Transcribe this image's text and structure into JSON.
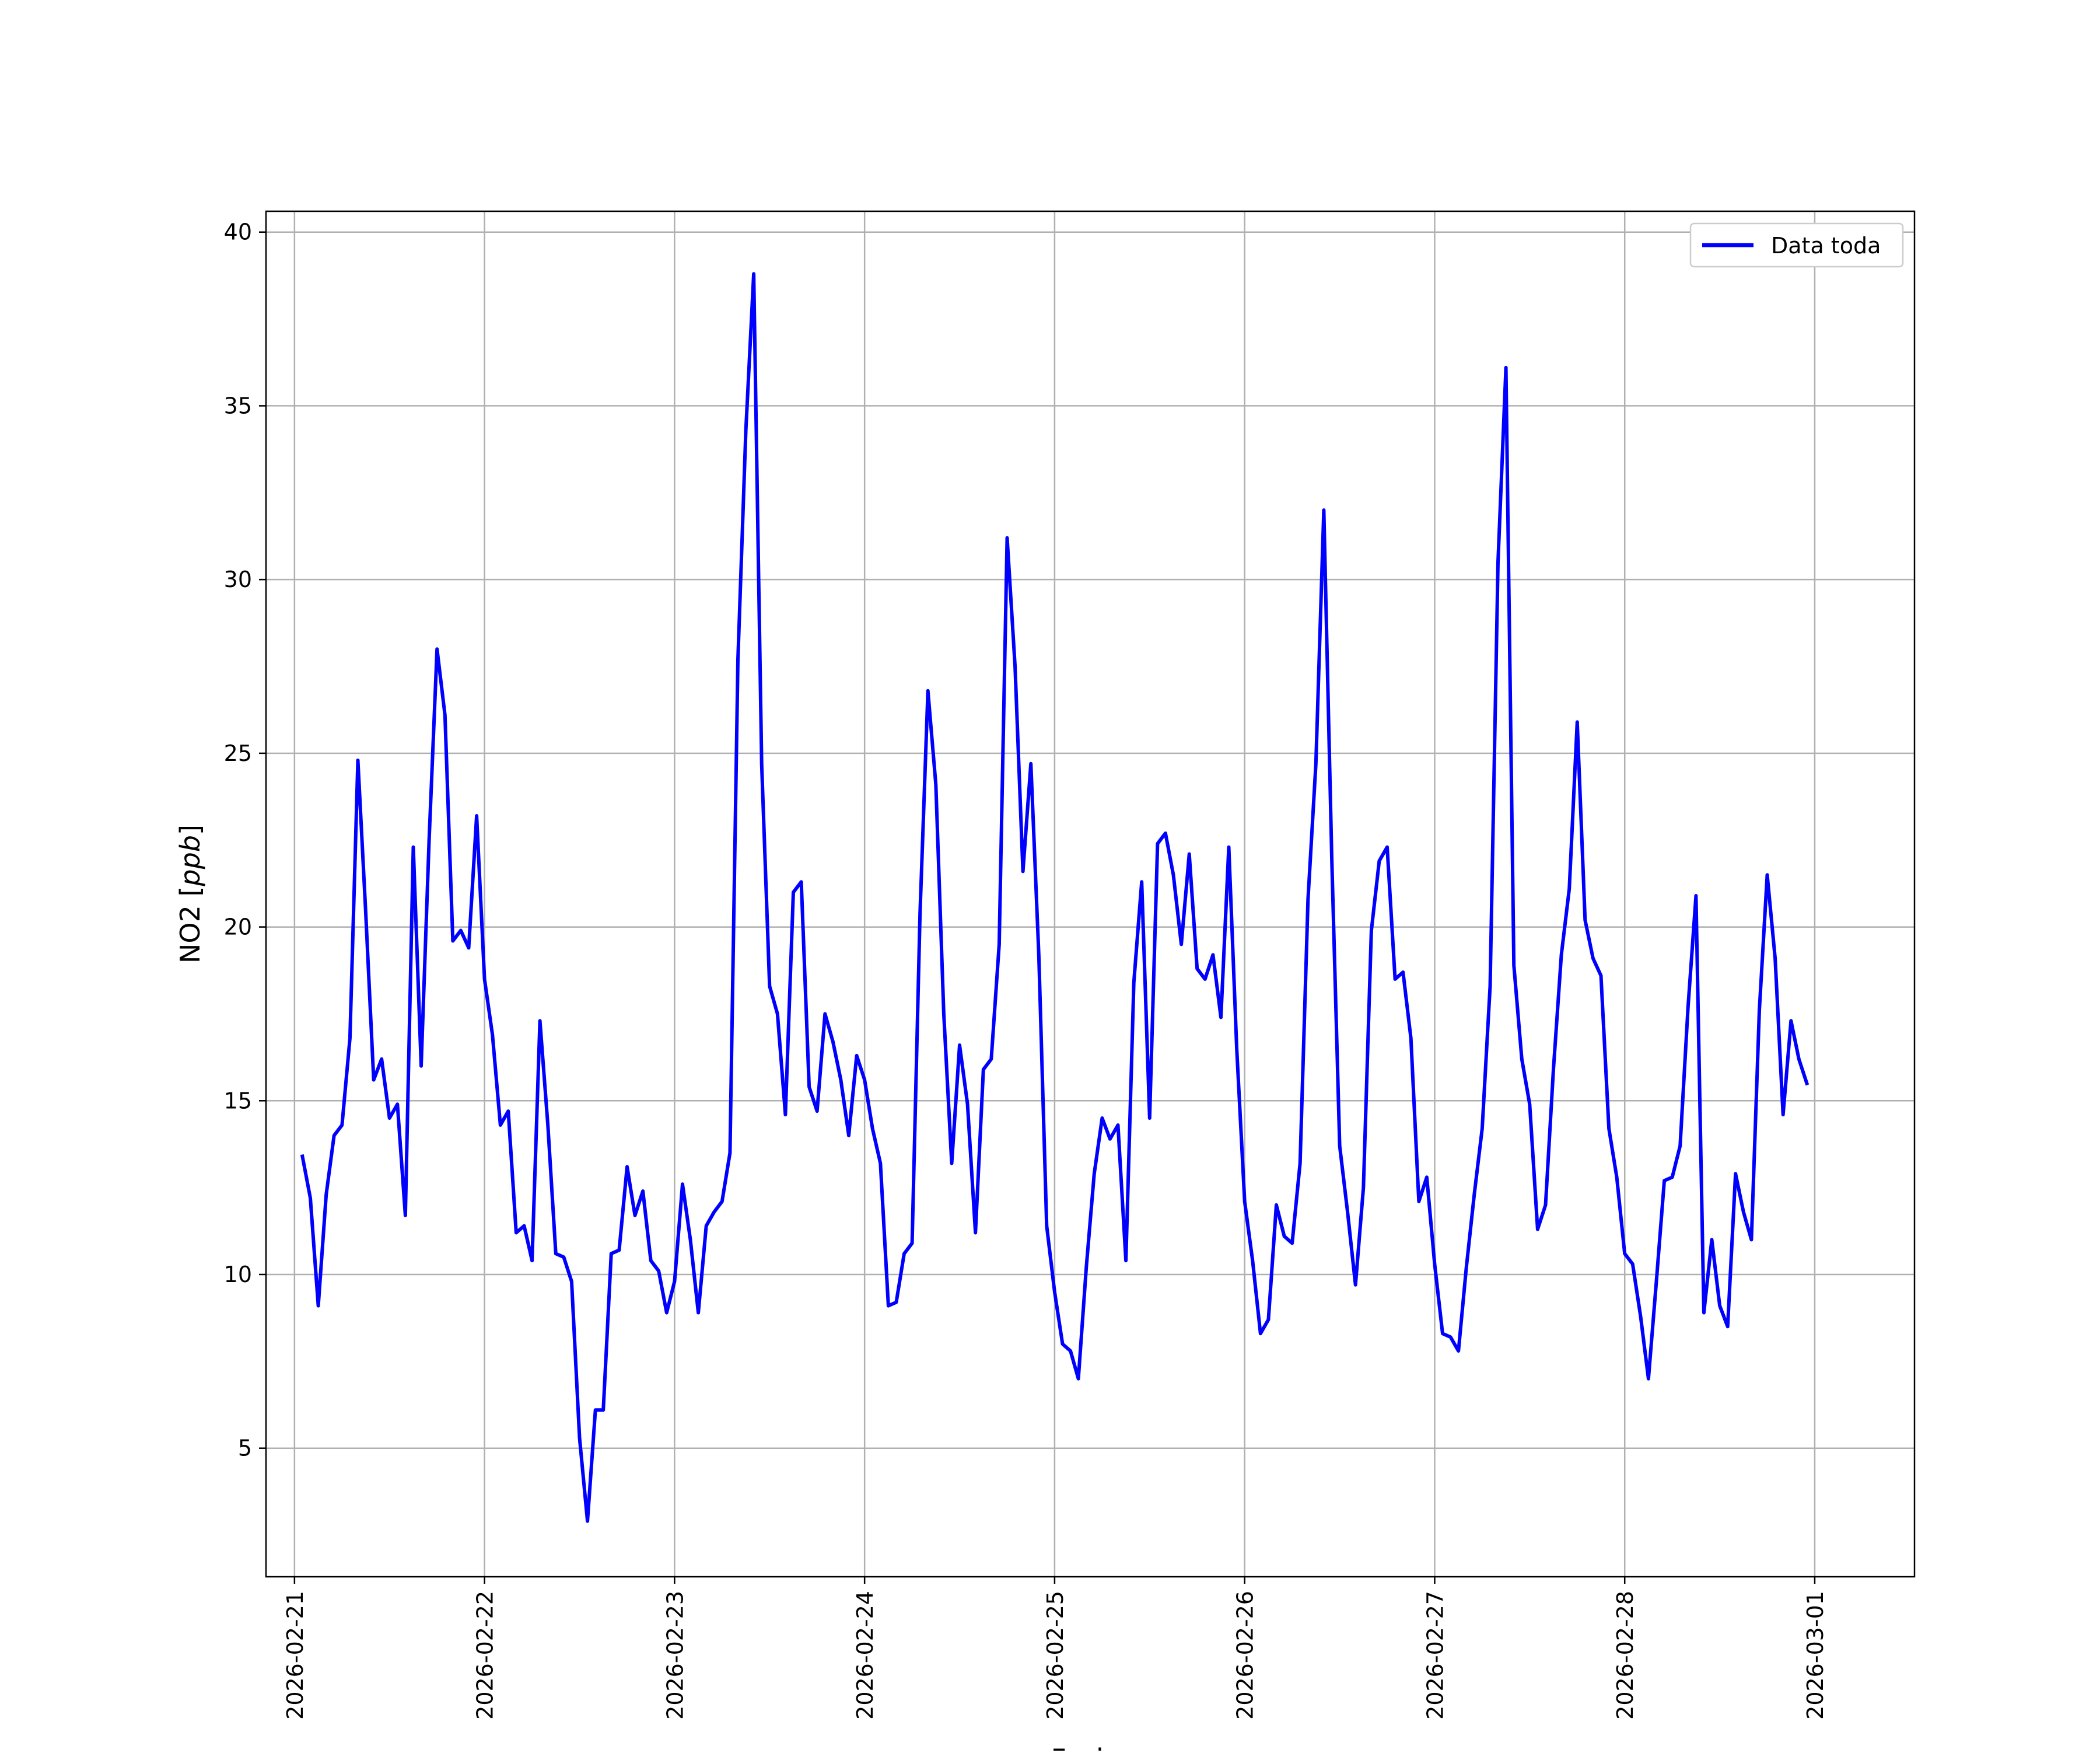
{
  "chart_data": {
    "type": "line",
    "xlabel": "Fecha",
    "ylabel": "NO2 [ppb]",
    "ylabel_parts": {
      "base": "NO2 [",
      "unit": "ppb",
      "close": "]"
    },
    "xlim": [
      "2026-02-20T20:24",
      "2026-03-01T12:36"
    ],
    "ylim": [
      1.3,
      40.6
    ],
    "grid": true,
    "legend_position": "top-right",
    "x_ticks": [
      "2026-02-21",
      "2026-02-22",
      "2026-02-23",
      "2026-02-24",
      "2026-02-25",
      "2026-02-26",
      "2026-02-27",
      "2026-02-28",
      "2026-03-01"
    ],
    "y_ticks": [
      5,
      10,
      15,
      20,
      25,
      30,
      35,
      40
    ],
    "y_tick_labels": [
      "5",
      "10",
      "15",
      "20",
      "25",
      "30",
      "35",
      "40"
    ],
    "series": [
      {
        "name": "Data toda",
        "color": "#0000ff",
        "x_start": "2026-02-21T01:00",
        "x_step_hours": 1,
        "values": [
          13.4,
          12.2,
          9.1,
          12.3,
          14.0,
          14.3,
          16.8,
          24.8,
          20.4,
          15.6,
          16.2,
          14.5,
          14.9,
          11.7,
          22.3,
          16.0,
          22.5,
          28.0,
          26.1,
          19.6,
          19.9,
          19.4,
          23.2,
          18.5,
          16.9,
          14.3,
          14.7,
          11.2,
          11.4,
          10.4,
          17.3,
          14.3,
          10.6,
          10.5,
          9.8,
          5.3,
          2.9,
          6.1,
          6.1,
          10.6,
          10.7,
          13.1,
          11.7,
          12.4,
          10.4,
          10.1,
          8.9,
          9.8,
          12.6,
          11.0,
          8.9,
          11.4,
          11.8,
          12.1,
          13.5,
          27.7,
          34.3,
          38.8,
          24.7,
          18.3,
          17.5,
          14.6,
          21.0,
          21.3,
          15.4,
          14.7,
          17.5,
          16.7,
          15.6,
          14.0,
          16.3,
          15.6,
          14.2,
          13.2,
          9.1,
          9.2,
          10.6,
          10.9,
          20.4,
          26.8,
          24.1,
          17.5,
          13.2,
          16.6,
          14.9,
          11.2,
          15.9,
          16.2,
          19.5,
          31.2,
          27.5,
          21.6,
          24.7,
          19.2,
          11.4,
          9.5,
          8.0,
          7.8,
          7.0,
          10.2,
          12.9,
          14.5,
          13.9,
          14.3,
          10.4,
          18.4,
          21.3,
          14.5,
          22.4,
          22.7,
          21.5,
          19.5,
          22.1,
          18.8,
          18.5,
          19.2,
          17.4,
          22.3,
          16.5,
          12.1,
          10.4,
          8.3,
          8.7,
          12.0,
          11.1,
          10.9,
          13.2,
          20.8,
          24.7,
          32.0,
          22.0,
          13.7,
          11.8,
          9.7,
          12.5,
          19.9,
          21.9,
          22.3,
          18.5,
          18.7,
          16.8,
          12.1,
          12.8,
          10.3,
          8.3,
          8.2,
          7.8,
          10.2,
          12.3,
          14.2,
          18.3,
          30.5,
          36.1,
          18.9,
          16.2,
          14.9,
          11.3,
          12.0,
          15.9,
          19.2,
          21.1,
          25.9,
          20.2,
          19.1,
          18.6,
          14.2,
          12.8,
          10.6,
          10.3,
          8.8,
          7.0,
          9.8,
          12.7,
          12.8,
          13.7,
          17.7,
          20.9,
          8.9,
          11.0,
          9.1,
          8.5,
          12.9,
          11.8,
          11.0,
          17.6,
          21.5,
          19.1,
          14.6,
          17.3,
          16.2,
          15.5
        ]
      }
    ]
  }
}
